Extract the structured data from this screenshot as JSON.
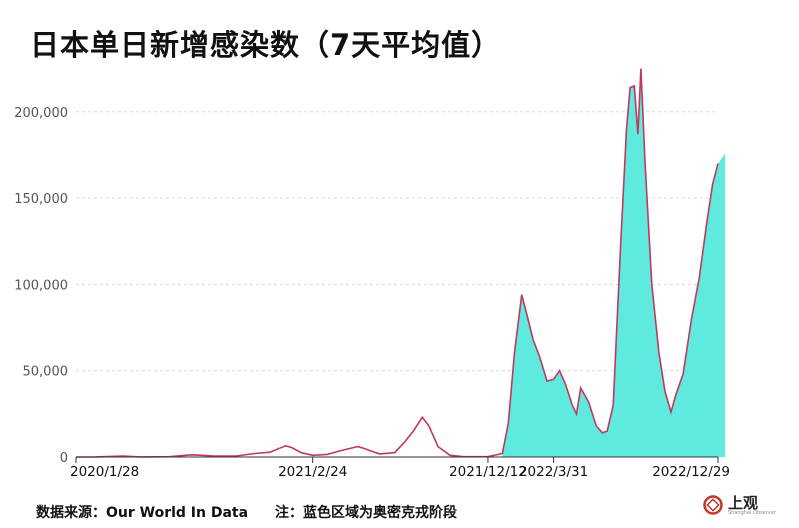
{
  "title": "日本单日新增感染数（7天平均值）",
  "footer": {
    "source": "数据来源：Our World In Data",
    "note": "注：蓝色区域为奥密克戎阶段"
  },
  "logo": {
    "text": "上观",
    "sub": "Shanghai Observer"
  },
  "colors": {
    "line": "#c0395a",
    "fill": "#5eeade",
    "grid": "#d9d9d9"
  },
  "chart_data": {
    "type": "area",
    "title": "日本单日新增感染数（7天平均值）",
    "xlabel": "",
    "ylabel": "",
    "ylim": [
      0,
      230000
    ],
    "yticks": [
      0,
      50000,
      100000,
      150000,
      200000
    ],
    "ytick_labels": [
      "0",
      "50,000",
      "100,000",
      "150,000",
      "200,000"
    ],
    "x_tick_labels": [
      "2020/1/28",
      "2021/2/24",
      "2021/12/12",
      "2022/3/31",
      "2022/12/29"
    ],
    "grid": true,
    "series": [
      {
        "values": [
          [
            "2020-01-28",
            0
          ],
          [
            "2020-03-01",
            50
          ],
          [
            "2020-04-15",
            500
          ],
          [
            "2020-05-15",
            50
          ],
          [
            "2020-07-01",
            200
          ],
          [
            "2020-08-07",
            1300
          ],
          [
            "2020-09-15",
            500
          ],
          [
            "2020-10-20",
            600
          ],
          [
            "2020-11-20",
            2000
          ],
          [
            "2020-12-15",
            2800
          ],
          [
            "2021-01-10",
            6500
          ],
          [
            "2021-01-20",
            5500
          ],
          [
            "2021-02-05",
            2500
          ],
          [
            "2021-02-24",
            1000
          ],
          [
            "2021-03-20",
            1500
          ],
          [
            "2021-04-15",
            4000
          ],
          [
            "2021-05-10",
            6000
          ],
          [
            "2021-05-20",
            5000
          ],
          [
            "2021-06-01",
            3500
          ],
          [
            "2021-06-15",
            1800
          ],
          [
            "2021-07-10",
            2500
          ],
          [
            "2021-07-25",
            8000
          ],
          [
            "2021-08-10",
            15000
          ],
          [
            "2021-08-25",
            23000
          ],
          [
            "2021-09-05",
            18000
          ],
          [
            "2021-09-20",
            6000
          ],
          [
            "2021-10-10",
            1000
          ],
          [
            "2021-11-01",
            200
          ],
          [
            "2021-12-12",
            150
          ],
          [
            "2022-01-05",
            2000
          ],
          [
            "2022-01-15",
            20000
          ],
          [
            "2022-01-25",
            60000
          ],
          [
            "2022-02-06",
            94000
          ],
          [
            "2022-02-15",
            82000
          ],
          [
            "2022-02-25",
            68000
          ],
          [
            "2022-03-08",
            58000
          ],
          [
            "2022-03-20",
            44000
          ],
          [
            "2022-03-31",
            45000
          ],
          [
            "2022-04-10",
            50000
          ],
          [
            "2022-04-20",
            42000
          ],
          [
            "2022-05-01",
            30000
          ],
          [
            "2022-05-08",
            25000
          ],
          [
            "2022-05-15",
            40000
          ],
          [
            "2022-05-28",
            32000
          ],
          [
            "2022-06-10",
            18000
          ],
          [
            "2022-06-20",
            14000
          ],
          [
            "2022-06-28",
            15000
          ],
          [
            "2022-07-08",
            30000
          ],
          [
            "2022-07-20",
            120000
          ],
          [
            "2022-07-30",
            190000
          ],
          [
            "2022-08-05",
            214000
          ],
          [
            "2022-08-12",
            215000
          ],
          [
            "2022-08-18",
            187000
          ],
          [
            "2022-08-23",
            225000
          ],
          [
            "2022-08-30",
            170000
          ],
          [
            "2022-09-10",
            100000
          ],
          [
            "2022-09-22",
            60000
          ],
          [
            "2022-10-02",
            38000
          ],
          [
            "2022-10-12",
            26000
          ],
          [
            "2022-10-20",
            36000
          ],
          [
            "2022-11-01",
            48000
          ],
          [
            "2022-11-15",
            80000
          ],
          [
            "2022-11-28",
            104000
          ],
          [
            "2022-12-10",
            135000
          ],
          [
            "2022-12-20",
            158000
          ],
          [
            "2022-12-29",
            170000
          ]
        ]
      }
    ],
    "omicron_start": "2021-12-20"
  }
}
